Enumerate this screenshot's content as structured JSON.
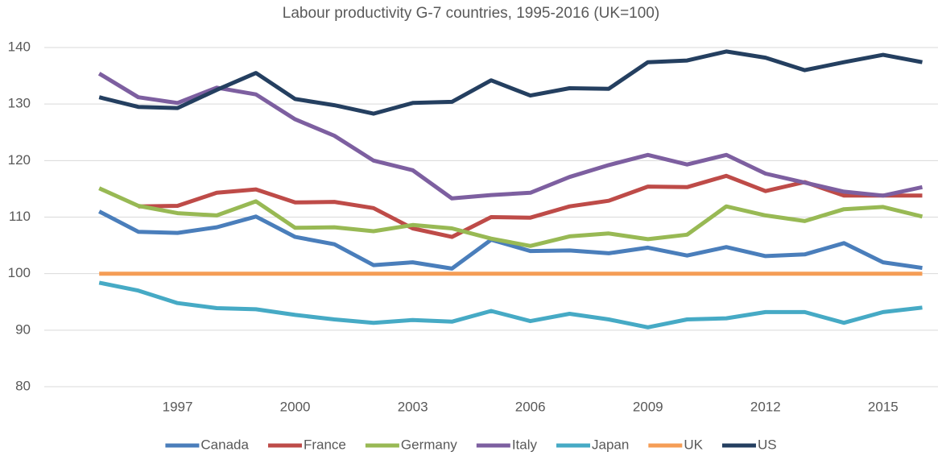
{
  "chart_data": {
    "type": "line",
    "title": "Labour productivity G-7 countries, 1995-2016 (UK=100)",
    "x": [
      1995,
      1996,
      1997,
      1998,
      1999,
      2000,
      2001,
      2002,
      2003,
      2004,
      2005,
      2006,
      2007,
      2008,
      2009,
      2010,
      2011,
      2012,
      2013,
      2014,
      2015,
      2016
    ],
    "xlim": [
      1993.6,
      2016.4
    ],
    "xticks": [
      1997,
      2000,
      2003,
      2006,
      2009,
      2012,
      2015
    ],
    "ylim": [
      80,
      140
    ],
    "yticks": [
      80,
      90,
      100,
      110,
      120,
      130,
      140
    ],
    "grid": true,
    "legend": "bottom",
    "series": [
      {
        "name": "Canada",
        "color": "#4a7ebb",
        "values": [
          111,
          107.4,
          107.2,
          108.2,
          110.1,
          106.5,
          105.2,
          101.5,
          102.0,
          100.9,
          106.0,
          104.0,
          104.1,
          103.6,
          104.6,
          103.2,
          104.7,
          103.1,
          103.4,
          105.4,
          102.0,
          101.0
        ]
      },
      {
        "name": "France",
        "color": "#be4b48",
        "values": [
          null,
          111.9,
          112.0,
          114.3,
          114.9,
          112.6,
          112.7,
          111.6,
          108.0,
          106.5,
          110.0,
          109.9,
          111.9,
          112.9,
          115.4,
          115.3,
          117.3,
          114.6,
          116.2,
          113.8,
          113.8,
          113.8
        ]
      },
      {
        "name": "Germany",
        "color": "#98b954",
        "values": [
          115.1,
          112.0,
          110.7,
          110.3,
          112.8,
          108.1,
          108.2,
          107.5,
          108.6,
          108.0,
          106.2,
          104.9,
          106.6,
          107.1,
          106.1,
          106.9,
          111.9,
          110.3,
          109.3,
          111.4,
          111.8,
          110.1
        ]
      },
      {
        "name": "Italy",
        "color": "#7d5fa0",
        "values": [
          135.4,
          131.2,
          130.2,
          132.9,
          131.7,
          127.3,
          124.4,
          120.0,
          118.3,
          113.3,
          113.9,
          114.3,
          117.1,
          119.2,
          121.0,
          119.3,
          121.0,
          117.7,
          116.1,
          114.5,
          113.8,
          115.3
        ]
      },
      {
        "name": "Japan",
        "color": "#46aac5",
        "values": [
          98.4,
          97.0,
          94.8,
          93.9,
          93.7,
          92.7,
          91.9,
          91.3,
          91.8,
          91.5,
          93.4,
          91.6,
          92.9,
          91.9,
          90.5,
          91.9,
          92.1,
          93.2,
          93.2,
          91.3,
          93.2,
          94.0
        ]
      },
      {
        "name": "UK",
        "color": "#f59d56",
        "values": [
          100,
          100,
          100,
          100,
          100,
          100,
          100,
          100,
          100,
          100,
          100,
          100,
          100,
          100,
          100,
          100,
          100,
          100,
          100,
          100,
          100,
          100
        ]
      },
      {
        "name": "US",
        "color": "#243f60",
        "values": [
          131.2,
          129.5,
          129.3,
          132.5,
          135.5,
          130.9,
          129.8,
          128.3,
          130.2,
          130.4,
          134.2,
          131.5,
          132.8,
          132.7,
          137.4,
          137.7,
          139.3,
          138.2,
          136.0,
          137.4,
          138.7,
          137.4
        ]
      }
    ]
  }
}
